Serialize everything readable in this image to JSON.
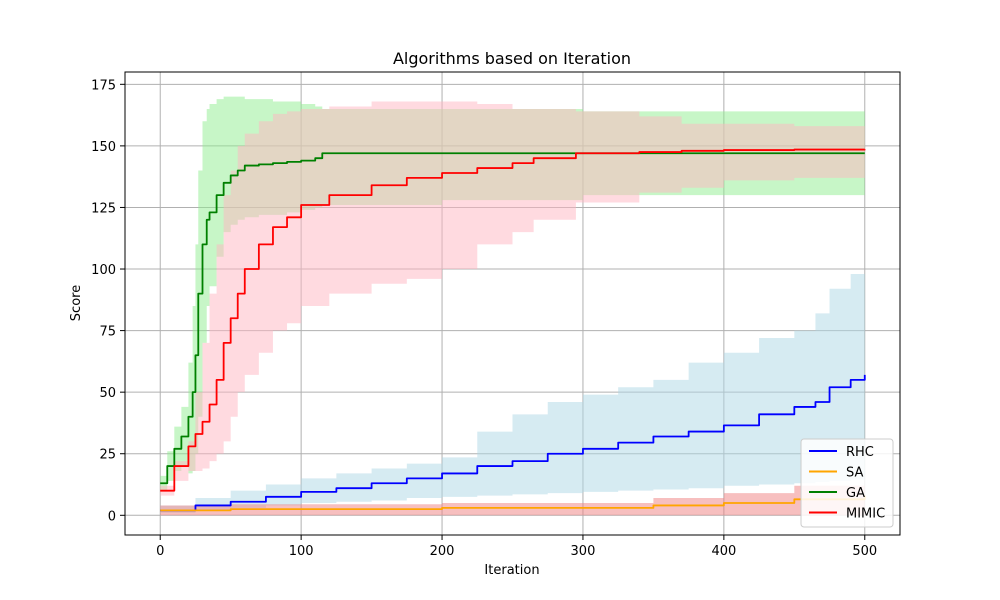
{
  "chart_data": {
    "type": "line",
    "title": "Algorithms based on Iteration",
    "xlabel": "Iteration",
    "ylabel": "Score",
    "xlim": [
      -25,
      525
    ],
    "ylim": [
      -8,
      180
    ],
    "xticks": [
      0,
      100,
      200,
      300,
      400,
      500
    ],
    "yticks": [
      0,
      25,
      50,
      75,
      100,
      125,
      150,
      175
    ],
    "grid": true,
    "legend_position": "lower-right",
    "series": [
      {
        "name": "RHC",
        "color": "#0000ff",
        "band_color": "#add8e6",
        "x": [
          0,
          25,
          50,
          75,
          100,
          125,
          150,
          175,
          200,
          225,
          250,
          275,
          300,
          325,
          350,
          375,
          400,
          425,
          450,
          465,
          475,
          490,
          500
        ],
        "y": [
          2,
          4,
          5.5,
          7.5,
          9.5,
          11,
          13,
          15,
          17,
          20,
          22,
          25,
          27,
          29.5,
          32,
          34,
          36.5,
          41,
          44,
          46,
          52,
          55,
          57
        ],
        "lower": [
          1,
          2,
          3,
          4,
          5,
          5.5,
          6,
          7,
          7.5,
          8,
          8.5,
          9,
          9.5,
          10,
          10.5,
          11,
          12,
          12.5,
          13,
          13.5,
          14,
          14.5,
          15
        ],
        "upper": [
          4,
          7,
          10,
          12.5,
          15,
          17,
          19,
          21,
          23.5,
          34,
          41,
          46,
          49,
          52,
          55,
          62,
          66,
          72,
          75,
          82,
          92,
          98,
          100
        ]
      },
      {
        "name": "SA",
        "color": "#ffa500",
        "band_color": "#f08080",
        "x": [
          0,
          50,
          100,
          150,
          200,
          250,
          300,
          350,
          400,
          450,
          500
        ],
        "y": [
          2,
          2.5,
          2.5,
          2.5,
          3,
          3,
          3,
          4,
          5,
          6.5,
          8
        ],
        "lower": [
          0,
          0,
          0,
          0,
          0,
          0,
          0,
          0,
          0,
          0,
          0
        ],
        "upper": [
          4,
          4.5,
          4.5,
          4.5,
          5,
          5,
          5,
          7,
          9,
          12,
          15
        ]
      },
      {
        "name": "GA",
        "color": "#008000",
        "band_color": "#90ee90",
        "x": [
          0,
          5,
          10,
          15,
          20,
          23,
          25,
          27,
          30,
          33,
          35,
          40,
          45,
          50,
          55,
          60,
          70,
          80,
          90,
          100,
          110,
          115,
          200,
          300,
          400,
          500
        ],
        "y": [
          13,
          20,
          27,
          32,
          40,
          50,
          65,
          90,
          110,
          120,
          123,
          130,
          135,
          138,
          140,
          142,
          142.5,
          143,
          143.5,
          144,
          145,
          147,
          147,
          147,
          147,
          147
        ],
        "lower": [
          10,
          14,
          18,
          20,
          17,
          18,
          25,
          40,
          70,
          85,
          93,
          105,
          115,
          118,
          120,
          121,
          122,
          122,
          123,
          124,
          125,
          126,
          128,
          130,
          130,
          130
        ],
        "upper": [
          16,
          26,
          36,
          44,
          62,
          85,
          110,
          140,
          160,
          165,
          167,
          169,
          170,
          170,
          170,
          169,
          169,
          168,
          168,
          167,
          166,
          165,
          165,
          164,
          164,
          164
        ]
      },
      {
        "name": "MIMIC",
        "color": "#ff0000",
        "band_color": "#ffb6c1",
        "x": [
          0,
          10,
          20,
          25,
          30,
          35,
          40,
          45,
          50,
          55,
          60,
          70,
          80,
          90,
          100,
          120,
          150,
          175,
          200,
          225,
          250,
          265,
          295,
          340,
          370,
          400,
          450,
          500
        ],
        "y": [
          10,
          20,
          28,
          33,
          38,
          45,
          55,
          70,
          80,
          90,
          100,
          110,
          117,
          121,
          126,
          130,
          134,
          137,
          139,
          141,
          143,
          145,
          147,
          147.5,
          148,
          148.3,
          148.5,
          148.6
        ],
        "lower": [
          8,
          14,
          18,
          18,
          19,
          22,
          25,
          30,
          40,
          50,
          57,
          66,
          75,
          78,
          85,
          90,
          94,
          96,
          100,
          110,
          115,
          120,
          127,
          131,
          133,
          136,
          137,
          138
        ],
        "upper": [
          12,
          22,
          30,
          50,
          70,
          90,
          110,
          130,
          140,
          150,
          155,
          160,
          163,
          164,
          165,
          166,
          168,
          168,
          168,
          167,
          165,
          165,
          164,
          162,
          159,
          159,
          158,
          158
        ]
      }
    ]
  }
}
